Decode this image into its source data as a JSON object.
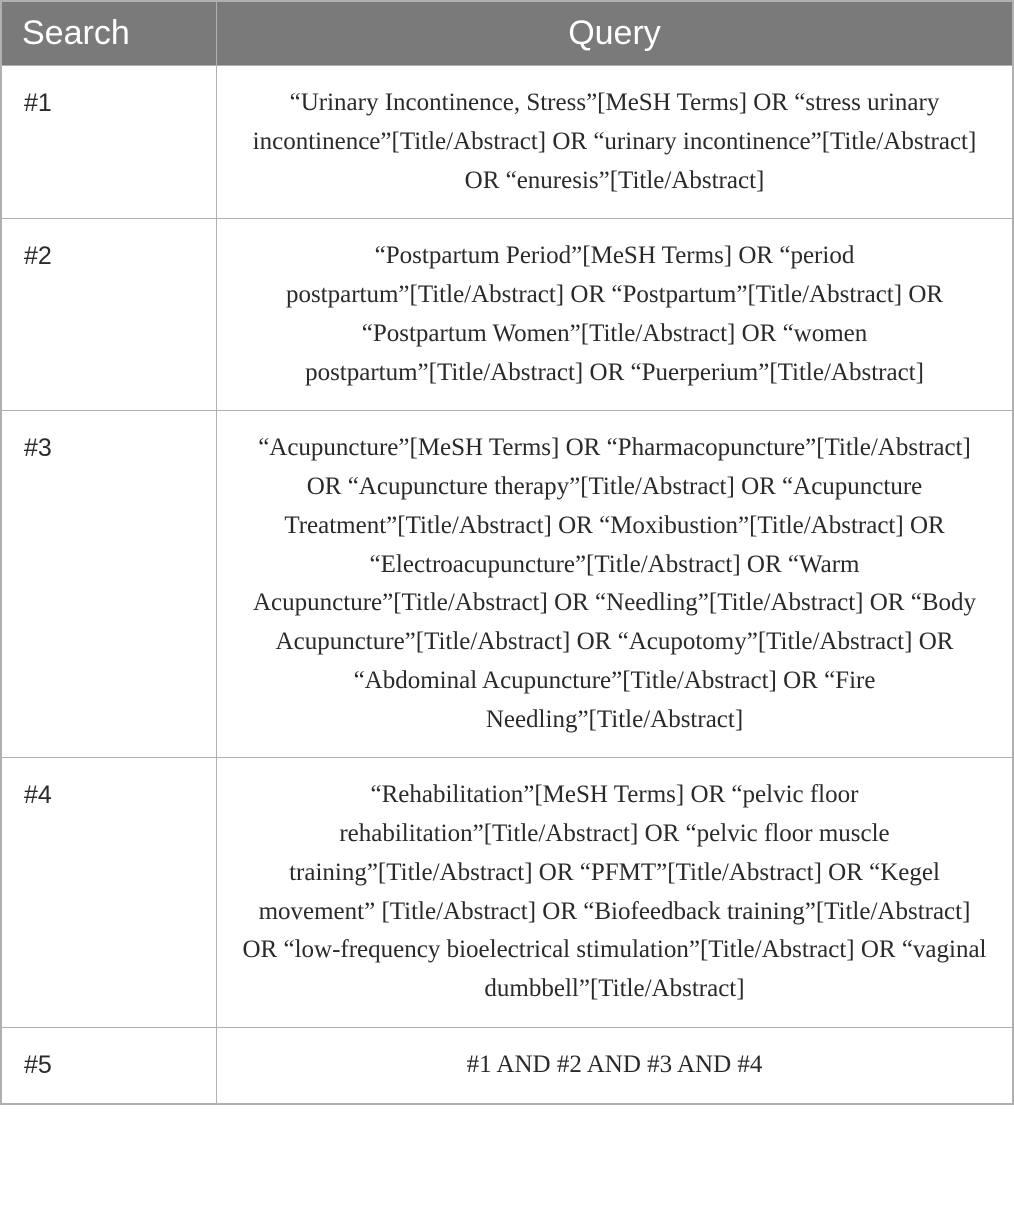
{
  "table": {
    "headers": {
      "search": "Search",
      "query": "Query"
    },
    "rows": [
      {
        "search": "#1",
        "query": "“Urinary Incontinence, Stress”[MeSH Terms] OR “stress urinary incontinence”[Title/Abstract] OR “urinary incontinence”[Title/Abstract] OR “enuresis”[Title/Abstract]"
      },
      {
        "search": "#2",
        "query": "“Postpartum Period”[MeSH Terms] OR “period postpartum”[Title/Abstract] OR “Postpartum”[Title/Abstract] OR “Postpartum Women”[Title/Abstract] OR “women postpartum”[Title/Abstract] OR “Puerperium”[Title/Abstract]"
      },
      {
        "search": "#3",
        "query": "“Acupuncture”[MeSH Terms] OR “Pharmacopuncture”[Title/Abstract] OR “Acupuncture therapy”[Title/Abstract] OR “Acupuncture Treatment”[Title/Abstract] OR “Moxibustion”[Title/Abstract] OR “Electroacupuncture”[Title/Abstract] OR “Warm Acupuncture”[Title/Abstract] OR “Needling”[Title/Abstract] OR “Body Acupuncture”[Title/Abstract] OR “Acupotomy”[Title/Abstract] OR “Abdominal Acupuncture”[Title/Abstract] OR “Fire Needling”[Title/Abstract]"
      },
      {
        "search": "#4",
        "query": "“Rehabilitation”[MeSH Terms] OR “pelvic floor rehabilitation”[Title/Abstract] OR “pelvic floor muscle training”[Title/Abstract] OR “PFMT”[Title/Abstract] OR “Kegel movement” [Title/Abstract] OR “Biofeedback training”[Title/Abstract] OR “low-frequency bioelectrical stimulation”[Title/Abstract] OR “vaginal dumbbell”[Title/Abstract]"
      },
      {
        "search": "#5",
        "query": "#1 AND #2 AND #3 AND #4"
      }
    ],
    "styling": {
      "header_bg_color": "#7a7a7a",
      "header_text_color": "#ffffff",
      "border_color": "#b0b0b0",
      "cell_text_color": "#2a2a2a",
      "background_color": "#ffffff",
      "header_font_size": 34,
      "cell_font_size": 25,
      "search_col_width": 215,
      "total_width": 1014
    }
  }
}
